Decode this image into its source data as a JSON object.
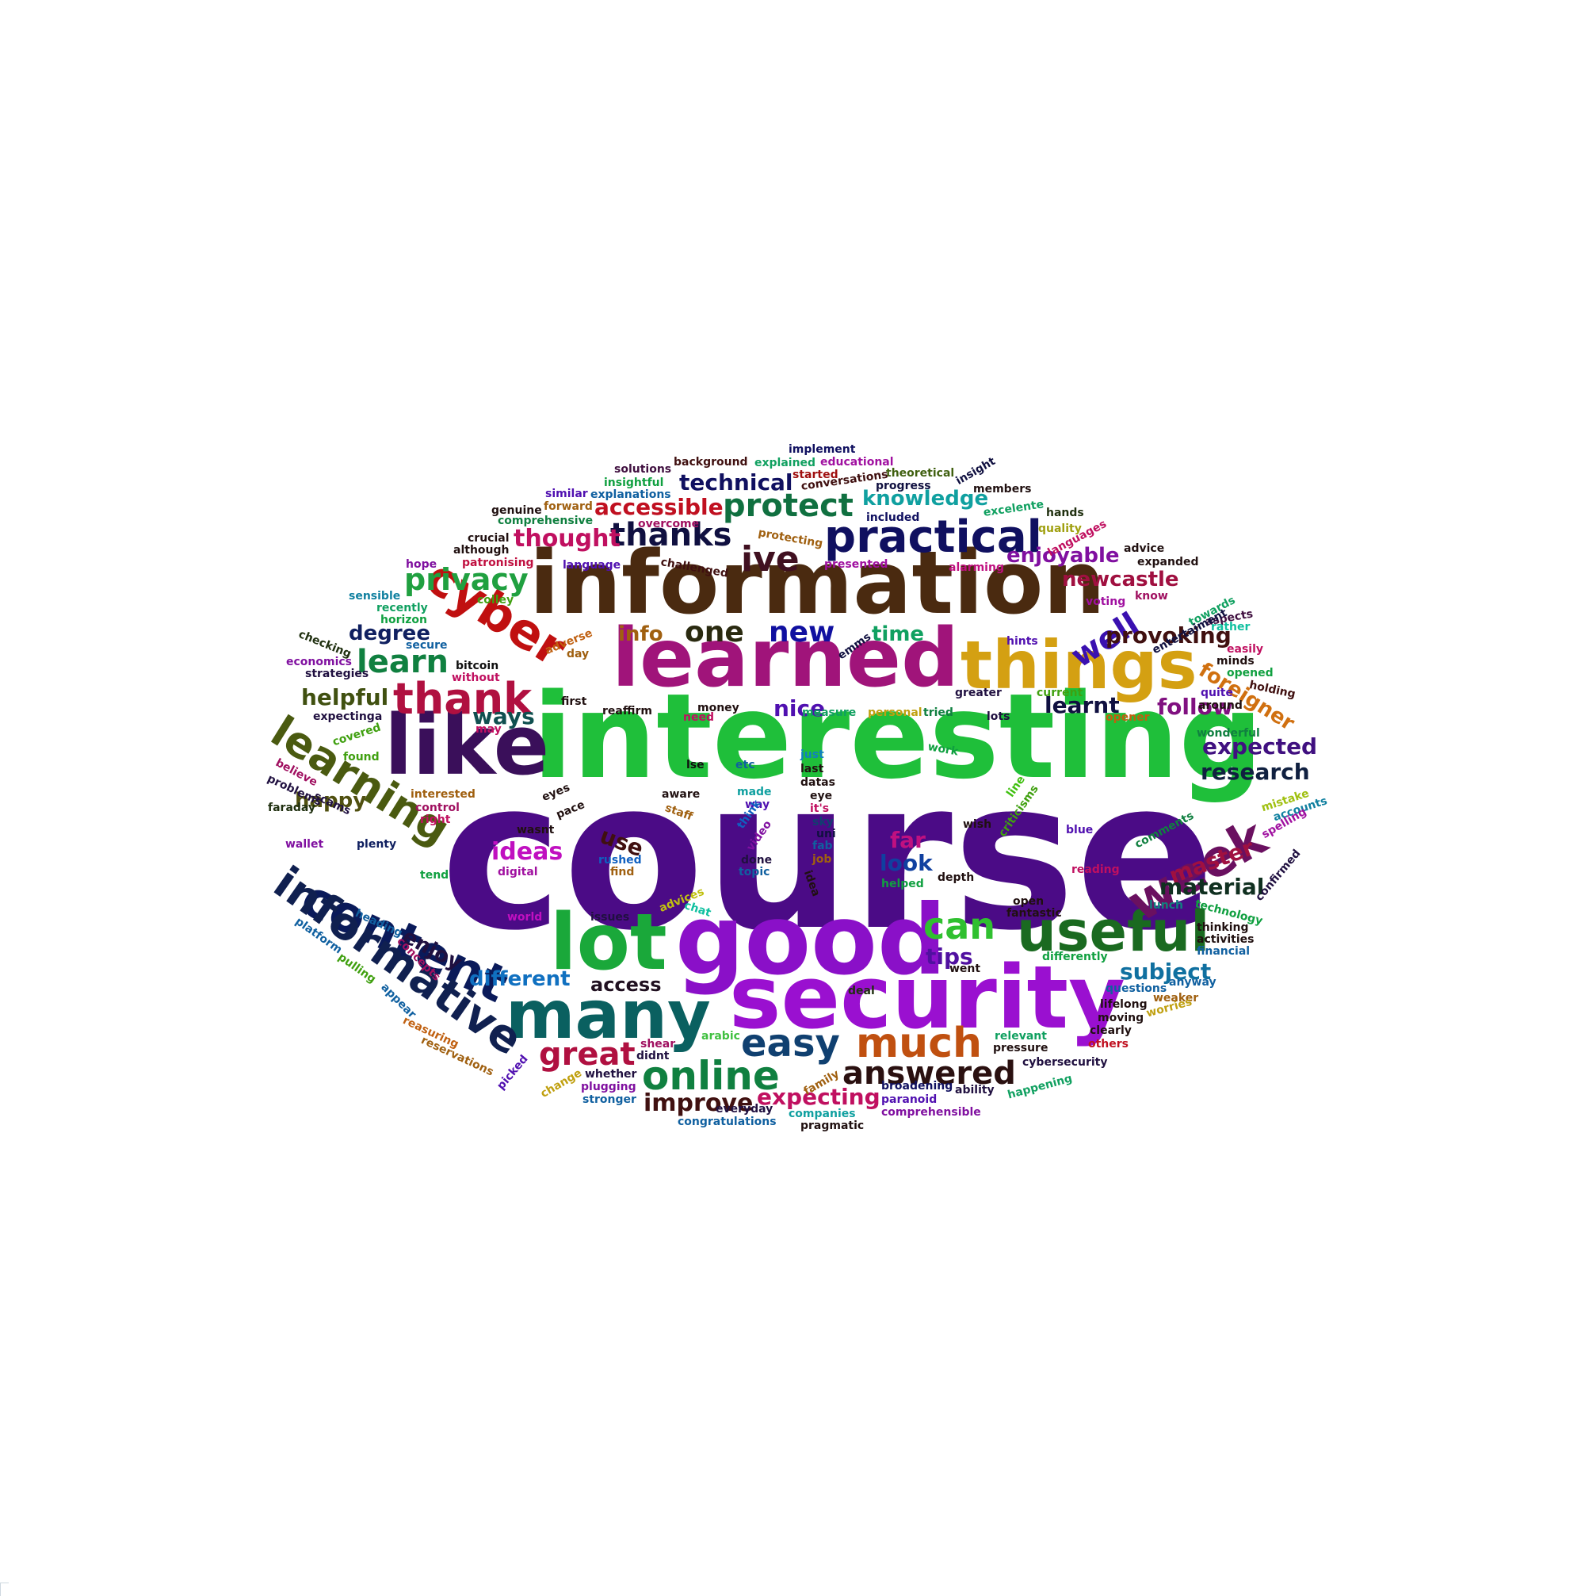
{
  "words": [
    {
      "text": "course",
      "color": "#4b0b86"
    },
    {
      "text": "interesting",
      "color": "#1fbf3a"
    },
    {
      "text": "information",
      "color": "#4a2a10"
    },
    {
      "text": "learned",
      "color": "#a0147a"
    },
    {
      "text": "things",
      "color": "#d4a012"
    },
    {
      "text": "good",
      "color": "#8a10c8"
    },
    {
      "text": "security",
      "color": "#9a10d0"
    },
    {
      "text": "like",
      "color": "#3a0f5a"
    },
    {
      "text": "lot",
      "color": "#1aa83a"
    },
    {
      "text": "many",
      "color": "#0a6060"
    },
    {
      "text": "useful",
      "color": "#1a6a20"
    },
    {
      "text": "content",
      "color": "#0a1a5a"
    },
    {
      "text": "informative",
      "color": "#102050"
    },
    {
      "text": "practical",
      "color": "#101060"
    },
    {
      "text": "cyber",
      "color": "#c01010"
    },
    {
      "text": "week",
      "color": "#6a1060"
    },
    {
      "text": "learning",
      "color": "#4a5a10"
    },
    {
      "text": "thank",
      "color": "#b01040"
    },
    {
      "text": "online",
      "color": "#108040"
    },
    {
      "text": "much",
      "color": "#c05010"
    },
    {
      "text": "easy",
      "color": "#104070"
    },
    {
      "text": "answered",
      "color": "#2a1010"
    },
    {
      "text": "great",
      "color": "#b01040"
    },
    {
      "text": "protect",
      "color": "#107040"
    },
    {
      "text": "thanks",
      "color": "#101040"
    },
    {
      "text": "ive",
      "color": "#401020"
    },
    {
      "text": "privacy",
      "color": "#20a040"
    },
    {
      "text": "learn",
      "color": "#108040"
    },
    {
      "text": "one",
      "color": "#2a2a10"
    },
    {
      "text": "new",
      "color": "#1010a0"
    },
    {
      "text": "well",
      "color": "#3a10b0"
    },
    {
      "text": "can",
      "color": "#30c030"
    },
    {
      "text": "ideas",
      "color": "#c010c0"
    },
    {
      "text": "expecting",
      "color": "#c01060"
    },
    {
      "text": "improve",
      "color": "#401010"
    },
    {
      "text": "thought",
      "color": "#c01060"
    },
    {
      "text": "accessible",
      "color": "#c01020"
    },
    {
      "text": "technical",
      "color": "#101060"
    },
    {
      "text": "knowledge",
      "color": "#10a0a0"
    },
    {
      "text": "enjoyable",
      "color": "#8010a0"
    },
    {
      "text": "newcastle",
      "color": "#a01040"
    },
    {
      "text": "provoking",
      "color": "#401010"
    },
    {
      "text": "foreigner",
      "color": "#d07010"
    },
    {
      "text": "follow",
      "color": "#801080"
    },
    {
      "text": "expected",
      "color": "#401080"
    },
    {
      "text": "research",
      "color": "#102040"
    },
    {
      "text": "master",
      "color": "#a01040"
    },
    {
      "text": "material",
      "color": "#103020"
    },
    {
      "text": "subject",
      "color": "#1070a0"
    },
    {
      "text": "helpful",
      "color": "#405010"
    },
    {
      "text": "degree",
      "color": "#102060"
    },
    {
      "text": "happy",
      "color": "#505010"
    },
    {
      "text": "enjoy",
      "color": "#201040"
    },
    {
      "text": "different",
      "color": "#1070c0"
    },
    {
      "text": "access",
      "color": "#201020"
    },
    {
      "text": "tips",
      "color": "#5010a0"
    },
    {
      "text": "look",
      "color": "#1040a0"
    },
    {
      "text": "far",
      "color": "#c01080"
    },
    {
      "text": "use",
      "color": "#401010"
    },
    {
      "text": "ways",
      "color": "#105050"
    },
    {
      "text": "nice",
      "color": "#5010b0"
    },
    {
      "text": "learnt",
      "color": "#101040"
    },
    {
      "text": "info",
      "color": "#a06010"
    },
    {
      "text": "time",
      "color": "#10a060"
    },
    {
      "text": "implement",
      "color": "#101060"
    },
    {
      "text": "background",
      "color": "#401010"
    },
    {
      "text": "educational",
      "color": "#a010a0"
    },
    {
      "text": "explained",
      "color": "#10a060"
    },
    {
      "text": "solutions",
      "color": "#401040"
    },
    {
      "text": "insightful",
      "color": "#10a040"
    },
    {
      "text": "started",
      "color": "#a01010"
    },
    {
      "text": "conversations",
      "color": "#401010"
    },
    {
      "text": "theoretical",
      "color": "#406010"
    },
    {
      "text": "insight",
      "color": "#101040"
    },
    {
      "text": "similar",
      "color": "#5010b0"
    },
    {
      "text": "explanations",
      "color": "#1060a0"
    },
    {
      "text": "progress",
      "color": "#101040"
    },
    {
      "text": "members",
      "color": "#201010"
    },
    {
      "text": "genuine",
      "color": "#201010"
    },
    {
      "text": "forward",
      "color": "#a06010"
    },
    {
      "text": "included",
      "color": "#101060"
    },
    {
      "text": "excelente",
      "color": "#10a060"
    },
    {
      "text": "hands",
      "color": "#203010"
    },
    {
      "text": "comprehensive",
      "color": "#108040"
    },
    {
      "text": "overcome",
      "color": "#a01060"
    },
    {
      "text": "quality",
      "color": "#a0a010"
    },
    {
      "text": "crucial",
      "color": "#201010"
    },
    {
      "text": "protecting",
      "color": "#a06010"
    },
    {
      "text": "languages",
      "color": "#c01060"
    },
    {
      "text": "although",
      "color": "#201010"
    },
    {
      "text": "challenged",
      "color": "#401010"
    },
    {
      "text": "advice",
      "color": "#201010"
    },
    {
      "text": "hope",
      "color": "#8010a0"
    },
    {
      "text": "patronising",
      "color": "#c01040"
    },
    {
      "text": "language",
      "color": "#5010b0"
    },
    {
      "text": "presented",
      "color": "#a010a0"
    },
    {
      "text": "alarming",
      "color": "#c01080"
    },
    {
      "text": "expanded",
      "color": "#201010"
    },
    {
      "text": "sensible",
      "color": "#1080a0"
    },
    {
      "text": "recently",
      "color": "#10a060"
    },
    {
      "text": "horizon",
      "color": "#10a040"
    },
    {
      "text": "secure",
      "color": "#1060a0"
    },
    {
      "text": "colley",
      "color": "#40a010"
    },
    {
      "text": "voting",
      "color": "#a010a0"
    },
    {
      "text": "know",
      "color": "#a01060"
    },
    {
      "text": "towards",
      "color": "#10a060"
    },
    {
      "text": "aspects",
      "color": "#401040"
    },
    {
      "text": "rather",
      "color": "#10c0a0"
    },
    {
      "text": "checking",
      "color": "#203010"
    },
    {
      "text": "economics",
      "color": "#8010a0"
    },
    {
      "text": "strategies",
      "color": "#201040"
    },
    {
      "text": "bitcoin",
      "color": "#101010"
    },
    {
      "text": "adverse",
      "color": "#c06010"
    },
    {
      "text": "day",
      "color": "#a06010"
    },
    {
      "text": "emms",
      "color": "#101040"
    },
    {
      "text": "entertaiment",
      "color": "#101040"
    },
    {
      "text": "hints",
      "color": "#5010b0"
    },
    {
      "text": "easily",
      "color": "#c01060"
    },
    {
      "text": "minds",
      "color": "#201010"
    },
    {
      "text": "opened",
      "color": "#10a040"
    },
    {
      "text": "holding",
      "color": "#401010"
    },
    {
      "text": "without",
      "color": "#c01060"
    },
    {
      "text": "first",
      "color": "#201010"
    },
    {
      "text": "reaffirm",
      "color": "#201010"
    },
    {
      "text": "money",
      "color": "#201010"
    },
    {
      "text": "greater",
      "color": "#201040"
    },
    {
      "text": "current",
      "color": "#40a010"
    },
    {
      "text": "quite",
      "color": "#5010b0"
    },
    {
      "text": "around",
      "color": "#201010"
    },
    {
      "text": "expectinga",
      "color": "#201040"
    },
    {
      "text": "covered",
      "color": "#40a010"
    },
    {
      "text": "may",
      "color": "#c01060"
    },
    {
      "text": "need",
      "color": "#c01060"
    },
    {
      "text": "measure",
      "color": "#10a060"
    },
    {
      "text": "personal",
      "color": "#c0a010"
    },
    {
      "text": "tried",
      "color": "#108040"
    },
    {
      "text": "lots",
      "color": "#201040"
    },
    {
      "text": "opener",
      "color": "#c06010"
    },
    {
      "text": "wonderful",
      "color": "#108040"
    },
    {
      "text": "found",
      "color": "#40a010"
    },
    {
      "text": "believe",
      "color": "#a01060"
    },
    {
      "text": "problems",
      "color": "#201040"
    },
    {
      "text": "scams",
      "color": "#201040"
    },
    {
      "text": "interested",
      "color": "#a06010"
    },
    {
      "text": "control",
      "color": "#a01060"
    },
    {
      "text": "right",
      "color": "#c01060"
    },
    {
      "text": "faraday",
      "color": "#203010"
    },
    {
      "text": "wallet",
      "color": "#8010a0"
    },
    {
      "text": "plenty",
      "color": "#102060"
    },
    {
      "text": "lse",
      "color": "#101010"
    },
    {
      "text": "aware",
      "color": "#201010"
    },
    {
      "text": "staff",
      "color": "#a06010"
    },
    {
      "text": "eyes",
      "color": "#201010"
    },
    {
      "text": "pace",
      "color": "#201010"
    },
    {
      "text": "wasnt",
      "color": "#201010"
    },
    {
      "text": "etc",
      "color": "#1060a0"
    },
    {
      "text": "made",
      "color": "#10a0a0"
    },
    {
      "text": "way",
      "color": "#5010b0"
    },
    {
      "text": "think",
      "color": "#1060c0"
    },
    {
      "text": "video",
      "color": "#8010a0"
    },
    {
      "text": "just",
      "color": "#1080c0"
    },
    {
      "text": "last",
      "color": "#201010"
    },
    {
      "text": "datas",
      "color": "#201010"
    },
    {
      "text": "eye",
      "color": "#201010"
    },
    {
      "text": "it's",
      "color": "#c01060"
    },
    {
      "text": "sky",
      "color": "#104070"
    },
    {
      "text": "uni",
      "color": "#101040"
    },
    {
      "text": "fab",
      "color": "#1060a0"
    },
    {
      "text": "job",
      "color": "#a06010"
    },
    {
      "text": "idea",
      "color": "#201010"
    },
    {
      "text": "work",
      "color": "#10a040"
    },
    {
      "text": "line",
      "color": "#40c010"
    },
    {
      "text": "criticisms",
      "color": "#40a010"
    },
    {
      "text": "wish",
      "color": "#201010"
    },
    {
      "text": "blue",
      "color": "#5010b0"
    },
    {
      "text": "comments",
      "color": "#108040"
    },
    {
      "text": "mistake",
      "color": "#a0c010"
    },
    {
      "text": "accounts",
      "color": "#1080a0"
    },
    {
      "text": "spelling",
      "color": "#a010a0"
    },
    {
      "text": "confirmed",
      "color": "#201040"
    },
    {
      "text": "reading",
      "color": "#c01060"
    },
    {
      "text": "tend",
      "color": "#10a040"
    },
    {
      "text": "rushed",
      "color": "#1060c0"
    },
    {
      "text": "find",
      "color": "#a06010"
    },
    {
      "text": "digital",
      "color": "#a010a0"
    },
    {
      "text": "done",
      "color": "#201040"
    },
    {
      "text": "topic",
      "color": "#1060a0"
    },
    {
      "text": "helped",
      "color": "#10a040"
    },
    {
      "text": "depth",
      "color": "#201010"
    },
    {
      "text": "open",
      "color": "#201010"
    },
    {
      "text": "fantastic",
      "color": "#201010"
    },
    {
      "text": "lunch",
      "color": "#108080"
    },
    {
      "text": "technology",
      "color": "#10a040"
    },
    {
      "text": "heading",
      "color": "#1060a0"
    },
    {
      "text": "world",
      "color": "#c010c0"
    },
    {
      "text": "issues",
      "color": "#201040"
    },
    {
      "text": "advices",
      "color": "#c0c010"
    },
    {
      "text": "chat",
      "color": "#10c0a0"
    },
    {
      "text": "went",
      "color": "#201010"
    },
    {
      "text": "differently",
      "color": "#10a040"
    },
    {
      "text": "thinking",
      "color": "#201010"
    },
    {
      "text": "activities",
      "color": "#201010"
    },
    {
      "text": "financial",
      "color": "#1060a0"
    },
    {
      "text": "platform",
      "color": "#1060a0"
    },
    {
      "text": "concepts",
      "color": "#a01060"
    },
    {
      "text": "pulling",
      "color": "#40a010"
    },
    {
      "text": "appear",
      "color": "#1060a0"
    },
    {
      "text": "deal",
      "color": "#203010"
    },
    {
      "text": "questions",
      "color": "#1060a0"
    },
    {
      "text": "anyway",
      "color": "#1060a0"
    },
    {
      "text": "lifelong",
      "color": "#201010"
    },
    {
      "text": "weaker",
      "color": "#a06010"
    },
    {
      "text": "worries",
      "color": "#c0a010"
    },
    {
      "text": "moving",
      "color": "#201010"
    },
    {
      "text": "clearly",
      "color": "#201010"
    },
    {
      "text": "others",
      "color": "#c01020"
    },
    {
      "text": "reasuring",
      "color": "#c06010"
    },
    {
      "text": "reservations",
      "color": "#a06010"
    },
    {
      "text": "picked",
      "color": "#5010b0"
    },
    {
      "text": "arabic",
      "color": "#40c040"
    },
    {
      "text": "shear",
      "color": "#a01060"
    },
    {
      "text": "didnt",
      "color": "#201040"
    },
    {
      "text": "relevant",
      "color": "#10a060"
    },
    {
      "text": "pressure",
      "color": "#201010"
    },
    {
      "text": "cybersecurity",
      "color": "#201040"
    },
    {
      "text": "change",
      "color": "#c0a010"
    },
    {
      "text": "whether",
      "color": "#201040"
    },
    {
      "text": "plugging",
      "color": "#8010a0"
    },
    {
      "text": "family",
      "color": "#a06010"
    },
    {
      "text": "broadening",
      "color": "#101060"
    },
    {
      "text": "ability",
      "color": "#201040"
    },
    {
      "text": "happening",
      "color": "#10a060"
    },
    {
      "text": "stronger",
      "color": "#1060a0"
    },
    {
      "text": "paranoid",
      "color": "#5010b0"
    },
    {
      "text": "everyday",
      "color": "#201040"
    },
    {
      "text": "companies",
      "color": "#10a0a0"
    },
    {
      "text": "comprehensible",
      "color": "#8010a0"
    },
    {
      "text": "congratulations",
      "color": "#1060a0"
    },
    {
      "text": "pragmatic",
      "color": "#201010"
    }
  ]
}
